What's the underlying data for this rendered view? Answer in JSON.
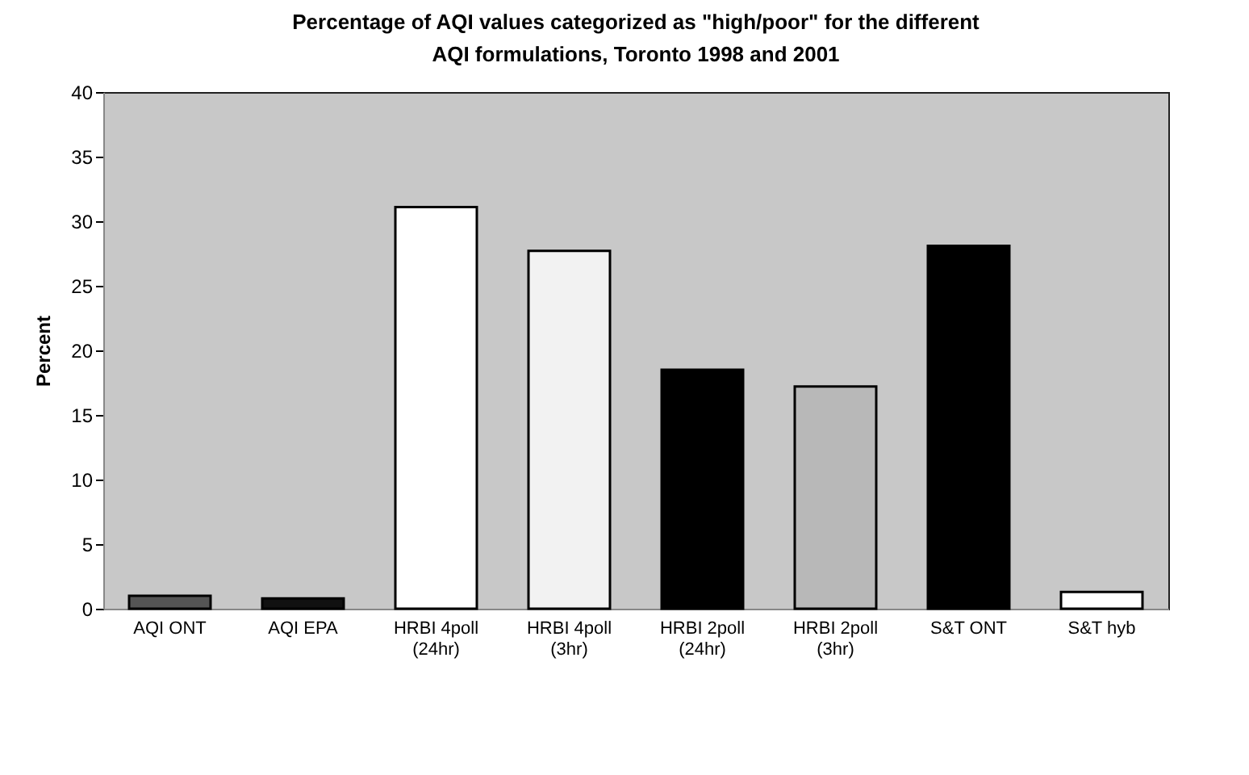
{
  "chart_data": {
    "type": "bar",
    "title": "Percentage of AQI values categorized as \"high/poor\" for the different AQI formulations, Toronto 1998 and 2001",
    "ylabel": "Percent",
    "categories": [
      "AQI ONT",
      "AQI EPA",
      "HRBI 4poll\n(24hr)",
      "HRBI 4poll\n(3hr)",
      "HRBI 2poll\n(24hr)",
      "HRBI 2poll\n(3hr)",
      "S&T  ONT",
      "S&T  hyb"
    ],
    "values": [
      1.0,
      0.8,
      31.1,
      27.7,
      18.5,
      17.2,
      28.1,
      1.3
    ],
    "colors": [
      "#555555",
      "#111111",
      "#ffffff",
      "#f2f2f2",
      "#000000",
      "#b8b8b8",
      "#000000",
      "#ffffff"
    ],
    "ylim": [
      0,
      40
    ],
    "yticks": [
      0,
      5,
      10,
      15,
      20,
      25,
      30,
      35,
      40
    ],
    "grid": false,
    "legend": false
  }
}
